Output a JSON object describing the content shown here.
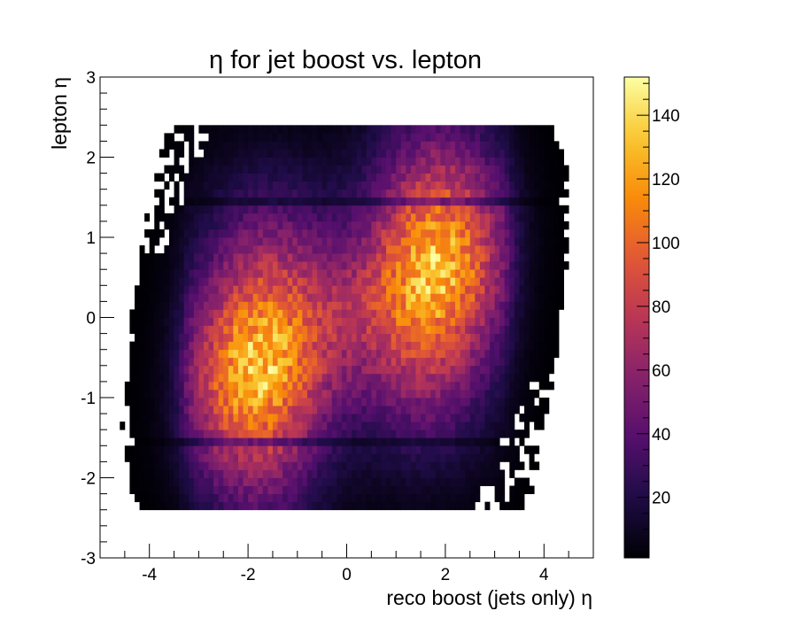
{
  "chart_data": {
    "type": "heatmap",
    "title": "η for jet boost vs. lepton",
    "xlabel": "reco boost (jets only) η",
    "ylabel": "lepton η",
    "xlim": [
      -5,
      5
    ],
    "ylim": [
      -3,
      3
    ],
    "x_ticks": [
      -4,
      -2,
      0,
      2,
      4
    ],
    "y_ticks": [
      -3,
      -2,
      -1,
      0,
      1,
      2,
      3
    ],
    "colorbar": {
      "min": 1,
      "max": 152,
      "ticks": [
        20,
        40,
        60,
        80,
        100,
        120,
        140
      ],
      "colormap": "inferno"
    },
    "bins": {
      "x_width": 0.1,
      "y_width": 0.1,
      "y_range": [
        -2.4,
        2.4
      ]
    },
    "crack_bands_eta": [
      -1.52,
      1.47
    ],
    "density_components": [
      {
        "x": -1.9,
        "y": -0.65,
        "peak": 95
      },
      {
        "x": 1.9,
        "y": 0.65,
        "peak": 95
      },
      {
        "x": -1.6,
        "y": 0.7,
        "peak": 38
      },
      {
        "x": 1.6,
        "y": -0.7,
        "peak": 38
      },
      {
        "x": 1.8,
        "y": 1.9,
        "peak": 28
      },
      {
        "x": -1.8,
        "y": -1.9,
        "peak": 28
      },
      {
        "x": 0,
        "y": 0,
        "peak": 22
      }
    ],
    "max_value": 150
  }
}
